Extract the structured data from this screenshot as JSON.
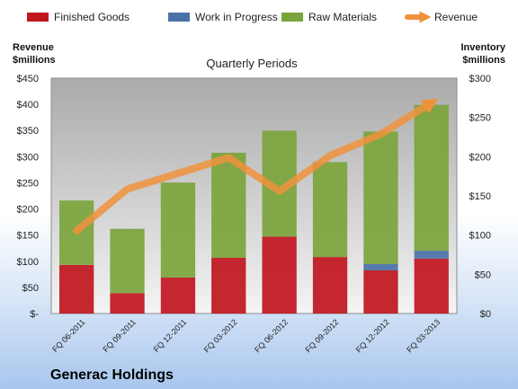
{
  "chart_data": {
    "type": "bar",
    "title": "Quarterly Periods",
    "company": "Generac Holdings",
    "left_axis_title": "Revenue\n$millions",
    "right_axis_title": "Inventory\n$millions",
    "categories": [
      "FQ 06-2011",
      "FQ 09-2011",
      "FQ 12-2011",
      "FQ 03-2012",
      "FQ 06-2012",
      "FQ 09-2012",
      "FQ 12-2012",
      "FQ 03-2013"
    ],
    "left_ticks": [
      "$-",
      "$50",
      "$100",
      "$150",
      "$200",
      "$250",
      "$300",
      "$350",
      "$400",
      "$450"
    ],
    "right_ticks": [
      "$0",
      "$50",
      "$100",
      "$150",
      "$200",
      "$250",
      "$300"
    ],
    "left_ylim": [
      0,
      450
    ],
    "right_ylim": [
      0,
      300
    ],
    "stacked": true,
    "series": [
      {
        "name": "Finished Goods",
        "axis": "right",
        "color": "#c0161e",
        "values": [
          62,
          26,
          46,
          71,
          98,
          72,
          55,
          70
        ]
      },
      {
        "name": "Work in Progress",
        "axis": "right",
        "color": "#4a72a8",
        "values": [
          0,
          0,
          0,
          0,
          0,
          0,
          8,
          10
        ]
      },
      {
        "name": "Raw Materials",
        "axis": "right",
        "color": "#7ba43c",
        "values": [
          82,
          82,
          121,
          134,
          135,
          121,
          169,
          186
        ]
      },
      {
        "name": "Revenue",
        "axis": "left",
        "type": "line",
        "color": "#f0923c",
        "values": [
          158,
          238,
          268,
          298,
          234,
          302,
          343,
          403
        ]
      }
    ],
    "legend_position": "top",
    "grid": false
  }
}
